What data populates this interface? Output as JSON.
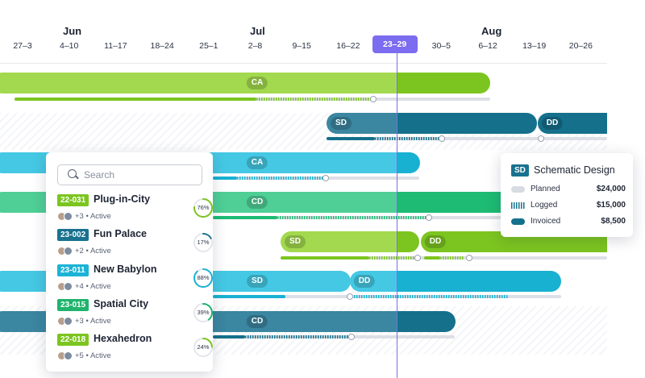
{
  "timeline": {
    "months": [
      {
        "label": "Jun"
      },
      {
        "label": "Jul"
      },
      {
        "label": "Aug"
      }
    ],
    "weeks": [
      "27–3",
      "4–10",
      "11–17",
      "18–24",
      "25–1",
      "2–8",
      "9–15",
      "16–22",
      "23–29",
      "30–5",
      "6–12",
      "13–19",
      "20–26"
    ],
    "selected_week": "23–29",
    "rows": [
      {
        "phases": [
          {
            "label": "CA"
          }
        ]
      },
      {
        "phases": [
          {
            "label": "SD"
          },
          {
            "label": "DD"
          }
        ]
      },
      {
        "phases": [
          {
            "label": "CA"
          }
        ]
      },
      {
        "phases": [
          {
            "label": "CD"
          }
        ]
      },
      {
        "phases": [
          {
            "label": "SD"
          },
          {
            "label": "DD"
          }
        ]
      },
      {
        "phases": [
          {
            "label": "SD"
          },
          {
            "label": "DD"
          }
        ]
      },
      {
        "phases": [
          {
            "label": "CD"
          }
        ]
      }
    ]
  },
  "search": {
    "placeholder": "Search"
  },
  "projects": [
    {
      "code": "22-031",
      "name": "Plug-in-City",
      "count": "+3",
      "status": "Active",
      "progress": 76,
      "color": "#7cc520"
    },
    {
      "code": "23-002",
      "name": "Fun Palace",
      "count": "+2",
      "status": "Active",
      "progress": 17,
      "color": "#19728f"
    },
    {
      "code": "23-011",
      "name": "New Babylon",
      "count": "+4",
      "status": "Active",
      "progress": 88,
      "color": "#1bb3d6"
    },
    {
      "code": "23-015",
      "name": "Spatial City",
      "count": "+3",
      "status": "Active",
      "progress": 39,
      "color": "#20b36e"
    },
    {
      "code": "22-018",
      "name": "Hexahedron",
      "count": "+5",
      "status": "Active",
      "progress": 24,
      "color": "#7cc520"
    }
  ],
  "legend": {
    "code": "SD",
    "title": "Schematic Design",
    "rows": [
      {
        "label": "Planned",
        "value": "$24,000"
      },
      {
        "label": "Logged",
        "value": "$15,000"
      },
      {
        "label": "Invoiced",
        "value": "$8,500"
      }
    ]
  },
  "colors": {
    "accent": "#7c6cf0",
    "lime": "#a3d94e",
    "lime_dark": "#7cc520",
    "teal": "#3b86a0",
    "teal_dark": "#15708c",
    "cyan": "#45c8e3",
    "cyan_dark": "#19b1d2",
    "green": "#4fcf96",
    "green_dark": "#1dbb73"
  }
}
